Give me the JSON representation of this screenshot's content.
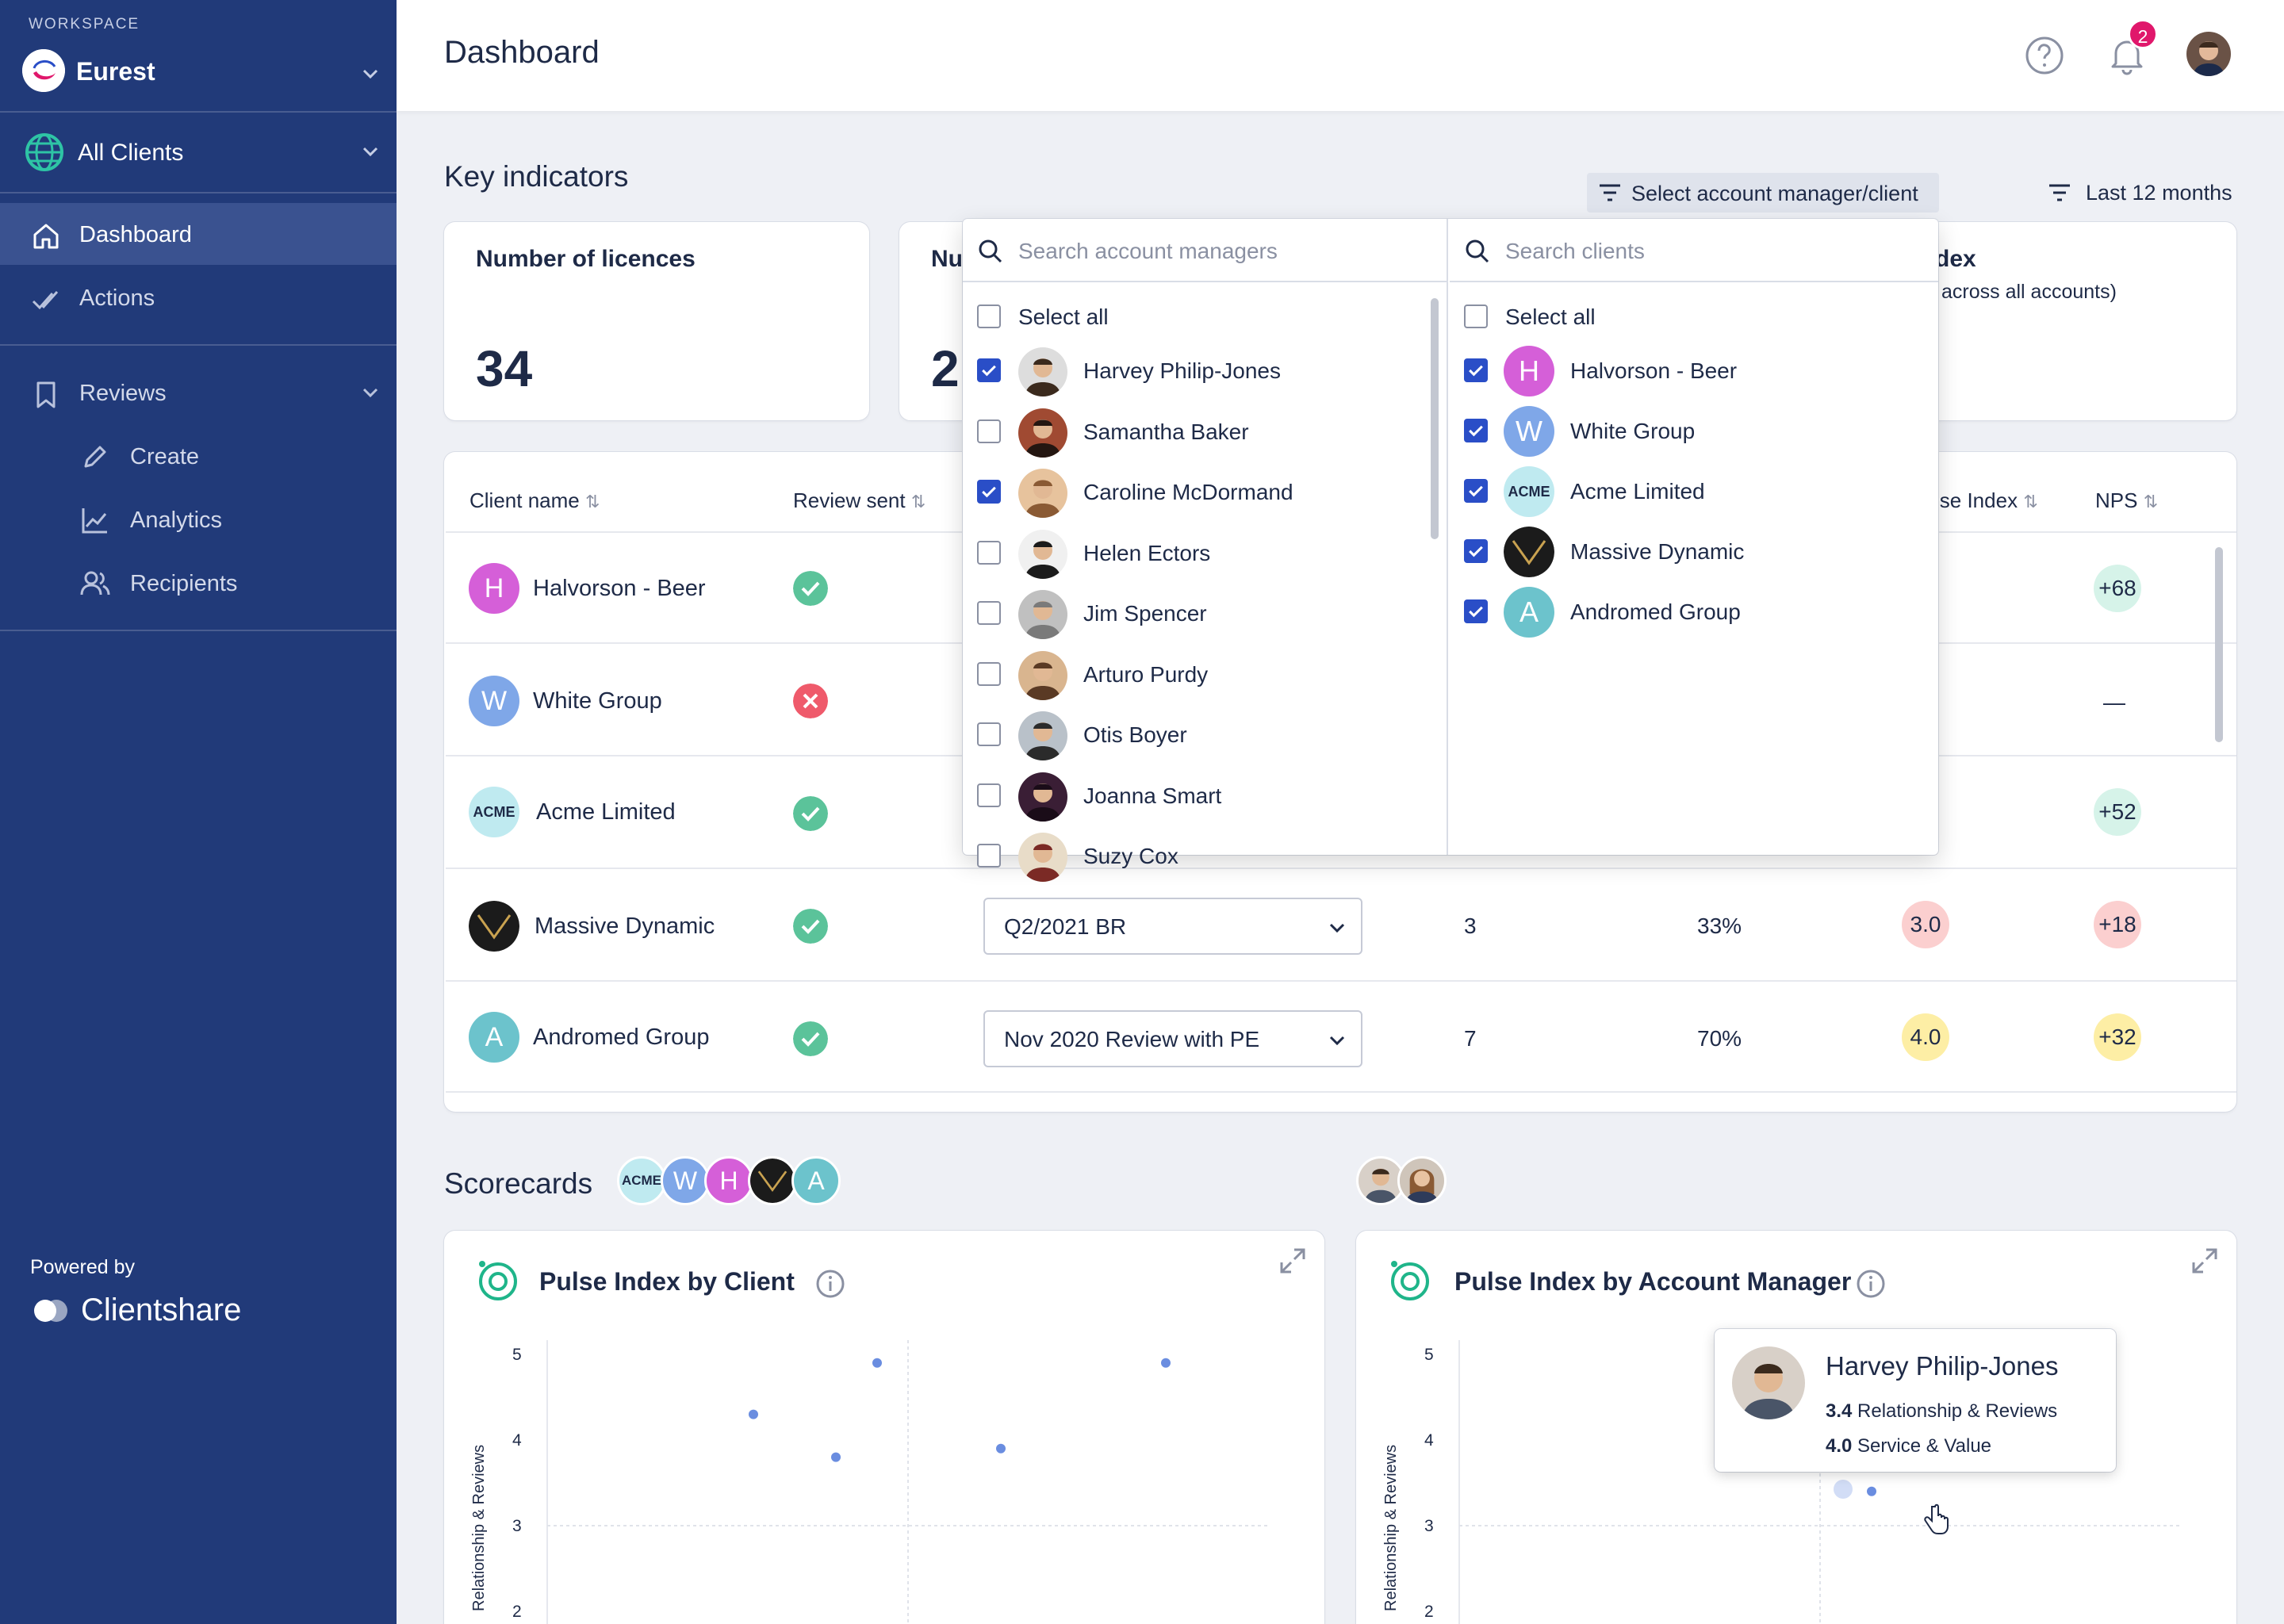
{
  "sidebar": {
    "workspace_label": "WORKSPACE",
    "workspace_name": "Eurest",
    "clients_filter": "All Clients",
    "nav": {
      "dashboard": "Dashboard",
      "actions": "Actions",
      "reviews": "Reviews"
    },
    "reviews_sub": {
      "create": "Create",
      "analytics": "Analytics",
      "recipients": "Recipients"
    },
    "powered_by": "Powered by",
    "brand": "Clientshare",
    "bg_color": "#213a79"
  },
  "header": {
    "title": "Dashboard",
    "notification_count": "2"
  },
  "key_indicators": {
    "title": "Key indicators",
    "filter_button": "Select account manager/client",
    "period_button": "Last 12 months",
    "cards": [
      {
        "title": "Number of licences",
        "value": "34"
      },
      {
        "title_partial": "Nu",
        "value_partial": "2"
      },
      {
        "title_partial": "dex",
        "subtitle_partial": "across all accounts)"
      }
    ]
  },
  "table": {
    "columns": {
      "client": "Client name",
      "review_sent": "Review sent",
      "pulse_partial": "lse Index",
      "nps": "NPS"
    },
    "rows": [
      {
        "initial": "H",
        "name": "Halvorson - Beer",
        "sent": true,
        "review": "",
        "count": "",
        "pct": "",
        "pulse": "",
        "nps": "+68",
        "nps_color": "#d6f3e9",
        "avatar_color": "#d55fd8"
      },
      {
        "initial": "W",
        "name": "White Group",
        "sent": false,
        "review": "",
        "count": "",
        "pct": "",
        "pulse": "",
        "nps": "—",
        "nps_color": "transparent",
        "avatar_color": "#7fa7e8"
      },
      {
        "initial": "ACME",
        "name": "Acme Limited",
        "sent": true,
        "review": "",
        "count": "",
        "pct": "",
        "pulse": "",
        "nps": "+52",
        "nps_color": "#d6f3e9",
        "avatar_color": "#bfeaf0"
      },
      {
        "initial": "",
        "name": "Massive Dynamic",
        "sent": true,
        "review": "Q2/2021 BR",
        "count": "3",
        "pct": "33%",
        "pulse": "3.0",
        "pulse_color": "#fbcfcf",
        "nps": "+18",
        "nps_color": "#fbcfcf",
        "avatar_color": "#1b1b1b"
      },
      {
        "initial": "A",
        "name": "Andromed Group",
        "sent": true,
        "review": "Nov 2020 Review with PE",
        "count": "7",
        "pct": "70%",
        "pulse": "4.0",
        "pulse_color": "#fdeea5",
        "nps": "+32",
        "nps_color": "#fdeea5",
        "avatar_color": "#6cc3cc"
      }
    ]
  },
  "dropdown": {
    "managers_placeholder": "Search account managers",
    "clients_placeholder": "Search clients",
    "select_all": "Select all",
    "managers": [
      {
        "name": "Harvey Philip-Jones",
        "checked": true
      },
      {
        "name": "Samantha Baker",
        "checked": false
      },
      {
        "name": "Caroline McDormand",
        "checked": true
      },
      {
        "name": "Helen Ectors",
        "checked": false
      },
      {
        "name": "Jim Spencer",
        "checked": false
      },
      {
        "name": "Arturo Purdy",
        "checked": false
      },
      {
        "name": "Otis Boyer",
        "checked": false
      },
      {
        "name": "Joanna Smart",
        "checked": false
      },
      {
        "name": "Suzy Cox",
        "checked": false
      }
    ],
    "clients": [
      {
        "initial": "H",
        "name": "Halvorson - Beer",
        "checked": true,
        "color": "#d55fd8"
      },
      {
        "initial": "W",
        "name": "White Group",
        "checked": true,
        "color": "#7fa7e8"
      },
      {
        "initial": "ACME",
        "name": "Acme Limited",
        "checked": true,
        "color": "#bfeaf0"
      },
      {
        "initial": "",
        "name": "Massive Dynamic",
        "checked": true,
        "color": "#1b1b1b"
      },
      {
        "initial": "A",
        "name": "Andromed Group",
        "checked": true,
        "color": "#6cc3cc"
      }
    ]
  },
  "scorecards": {
    "title": "Scorecards",
    "client_avatars": [
      {
        "initial": "ACME",
        "color": "#bfeaf0"
      },
      {
        "initial": "W",
        "color": "#7fa7e8"
      },
      {
        "initial": "H",
        "color": "#d55fd8"
      },
      {
        "initial": "",
        "color": "#1b1b1b"
      },
      {
        "initial": "A",
        "color": "#6cc3cc"
      }
    ],
    "chart1_title": "Pulse Index by Client",
    "chart2_title": "Pulse Index by Account Manager",
    "y_axis_label": "Relationship & Reviews",
    "y_ticks": [
      "5",
      "4",
      "3",
      "2"
    ],
    "tooltip": {
      "name": "Harvey Philip-Jones",
      "v1": "3.4",
      "l1": "Relationship & Reviews",
      "v2": "4.0",
      "l2": "Service & Value"
    }
  },
  "chart_data": [
    {
      "type": "scatter",
      "title": "Pulse Index by Client",
      "ylabel": "Relationship & Reviews",
      "ylim": [
        2,
        5
      ],
      "points": [
        {
          "x": 3.0,
          "y": 4.3
        },
        {
          "x": 3.4,
          "y": 3.8
        },
        {
          "x": 3.6,
          "y": 4.9
        },
        {
          "x": 4.2,
          "y": 3.9
        },
        {
          "x": 5.0,
          "y": 4.9
        }
      ]
    },
    {
      "type": "scatter",
      "title": "Pulse Index by Account Manager",
      "ylabel": "Relationship & Reviews",
      "ylim": [
        2,
        5
      ],
      "points": [
        {
          "x": 4.0,
          "y": 3.4
        }
      ]
    }
  ]
}
